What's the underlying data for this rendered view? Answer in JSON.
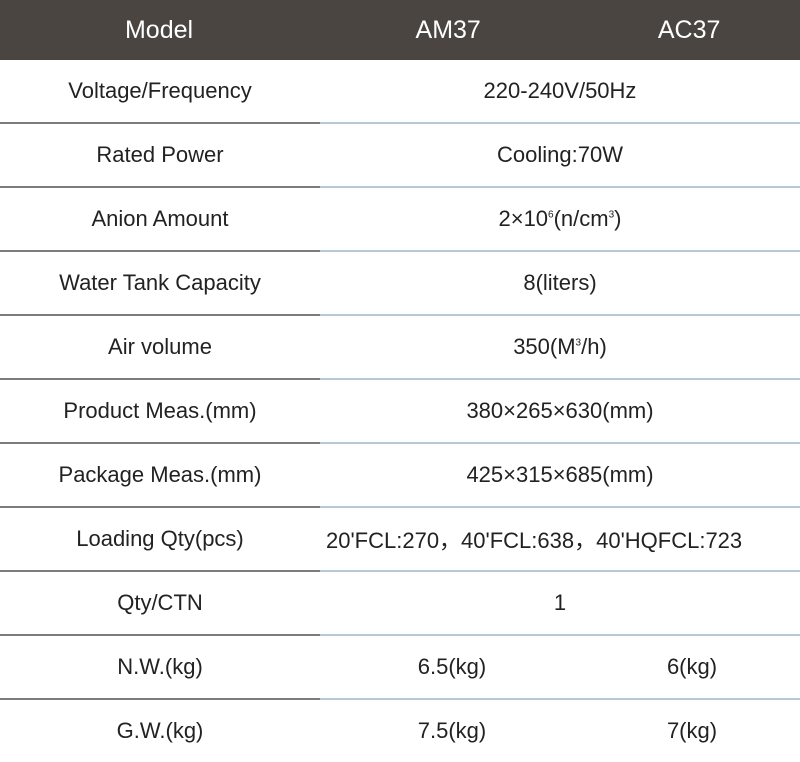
{
  "header": {
    "model_label": "Model",
    "am37": "AM37",
    "ac37": "AC37"
  },
  "rows": [
    {
      "label": "Voltage/Frequency",
      "value": "220-240V/50Hz"
    },
    {
      "label": "Rated Power",
      "value": "Cooling:70W"
    },
    {
      "label": "Anion Amount",
      "value_pre": "2×10",
      "value_sup1": "6",
      "value_mid": "(n/cm",
      "value_sup2": "3",
      "value_post": ")"
    },
    {
      "label": "Water Tank Capacity",
      "value": "8(liters)"
    },
    {
      "label": "Air volume",
      "value_pre": "350(M",
      "value_sup": "3",
      "value_post": "/h)"
    },
    {
      "label": "Product Meas.(mm)",
      "value": "380×265×630(mm)"
    },
    {
      "label": "Package Meas.(mm)",
      "value": "425×315×685(mm)"
    },
    {
      "label": "Loading Qty(pcs)",
      "value": "20'FCL:270，40'FCL:638，40'HQFCL:723"
    },
    {
      "label": "Qty/CTN",
      "value": "1"
    },
    {
      "label": "N.W.(kg)",
      "am37": "6.5(kg)",
      "ac37": "6(kg)"
    },
    {
      "label": "G.W.(kg)",
      "am37": "7.5(kg)",
      "ac37": "7(kg)"
    }
  ]
}
